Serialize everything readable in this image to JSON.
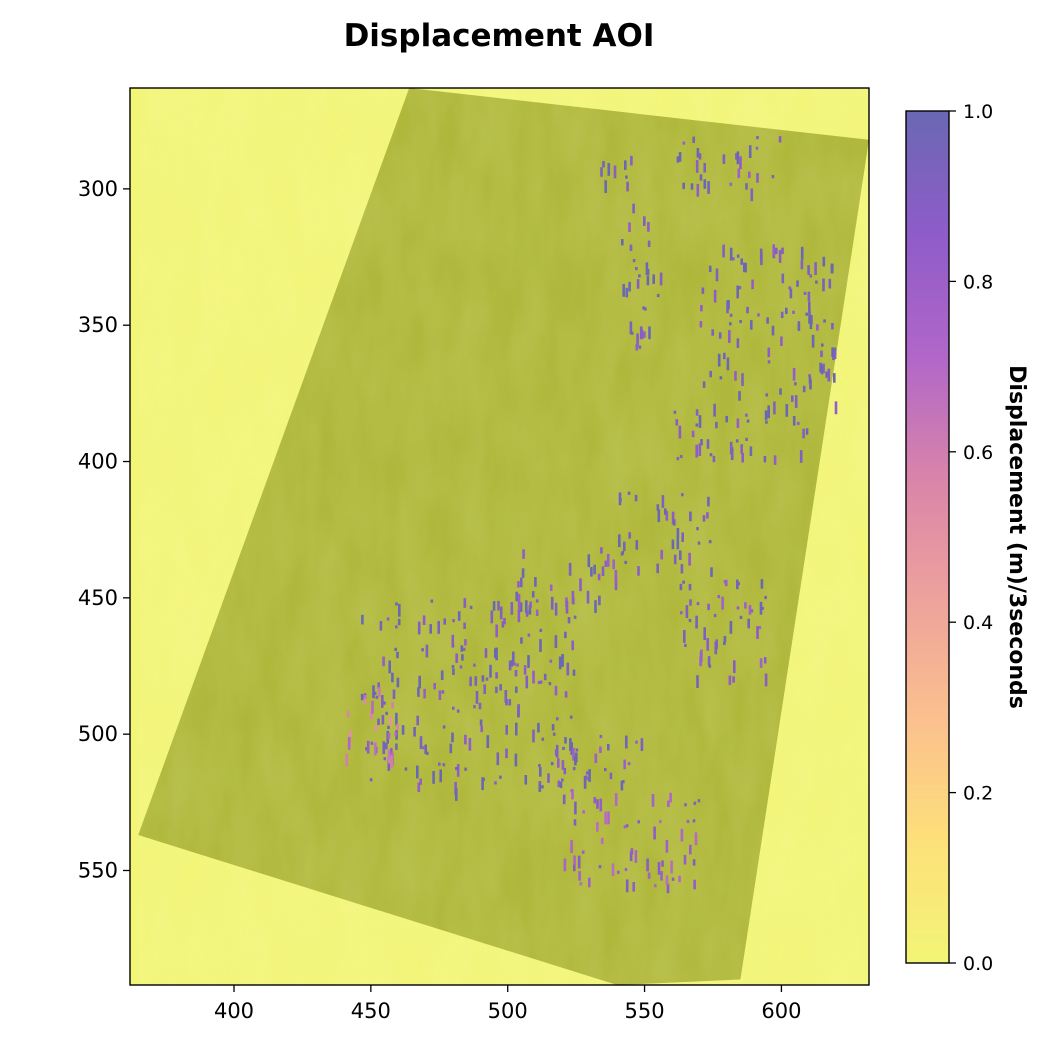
{
  "chart_data": {
    "type": "heatmap",
    "title": "Displacement AOI",
    "xlabel": "",
    "ylabel": "",
    "xlim": [
      362,
      632
    ],
    "ylim": [
      592,
      263
    ],
    "x_ticks": [
      400,
      450,
      500,
      550,
      600
    ],
    "y_ticks": [
      300,
      350,
      400,
      450,
      500,
      550
    ],
    "colorbar": {
      "label": "Displacement (m)/3seconds",
      "range": [
        0.0,
        1.0
      ],
      "ticks": [
        "0.0",
        "0.2",
        "0.4",
        "0.6",
        "0.8",
        "1.0"
      ],
      "colormap": [
        "#f2f576",
        "#fde07a",
        "#fbc08e",
        "#eda29c",
        "#d884aa",
        "#b066c9",
        "#8e5cc8",
        "#6a68b3"
      ]
    },
    "background_value": 0.0,
    "swath_color": "#acb536",
    "swath_outline": [
      [
        464,
        263
      ],
      [
        632,
        282
      ],
      [
        585,
        590
      ],
      [
        540,
        592
      ],
      [
        365,
        537
      ]
    ],
    "clusters": [
      {
        "x": [
          532,
          548
        ],
        "y": [
          285,
          300
        ],
        "value": 0.95
      },
      {
        "x": [
          540,
          556
        ],
        "y": [
          305,
          360
        ],
        "value": 0.95
      },
      {
        "x": [
          560,
          600
        ],
        "y": [
          280,
          300
        ],
        "value": 0.9
      },
      {
        "x": [
          570,
          620
        ],
        "y": [
          320,
          380
        ],
        "value": 0.95
      },
      {
        "x": [
          560,
          610
        ],
        "y": [
          380,
          400
        ],
        "value": 0.95
      },
      {
        "x": [
          540,
          575
        ],
        "y": [
          410,
          440
        ],
        "value": 0.95
      },
      {
        "x": [
          560,
          595
        ],
        "y": [
          440,
          480
        ],
        "value": 0.9
      },
      {
        "x": [
          445,
          525
        ],
        "y": [
          450,
          520
        ],
        "value": 0.95
      },
      {
        "x": [
          515,
          550
        ],
        "y": [
          500,
          520
        ],
        "value": 0.9
      },
      {
        "x": [
          520,
          570
        ],
        "y": [
          520,
          555
        ],
        "value": 0.8
      },
      {
        "x": [
          500,
          540
        ],
        "y": [
          430,
          455
        ],
        "value": 0.9
      },
      {
        "x": [
          440,
          460
        ],
        "y": [
          480,
          510
        ],
        "value": 0.6
      }
    ]
  }
}
